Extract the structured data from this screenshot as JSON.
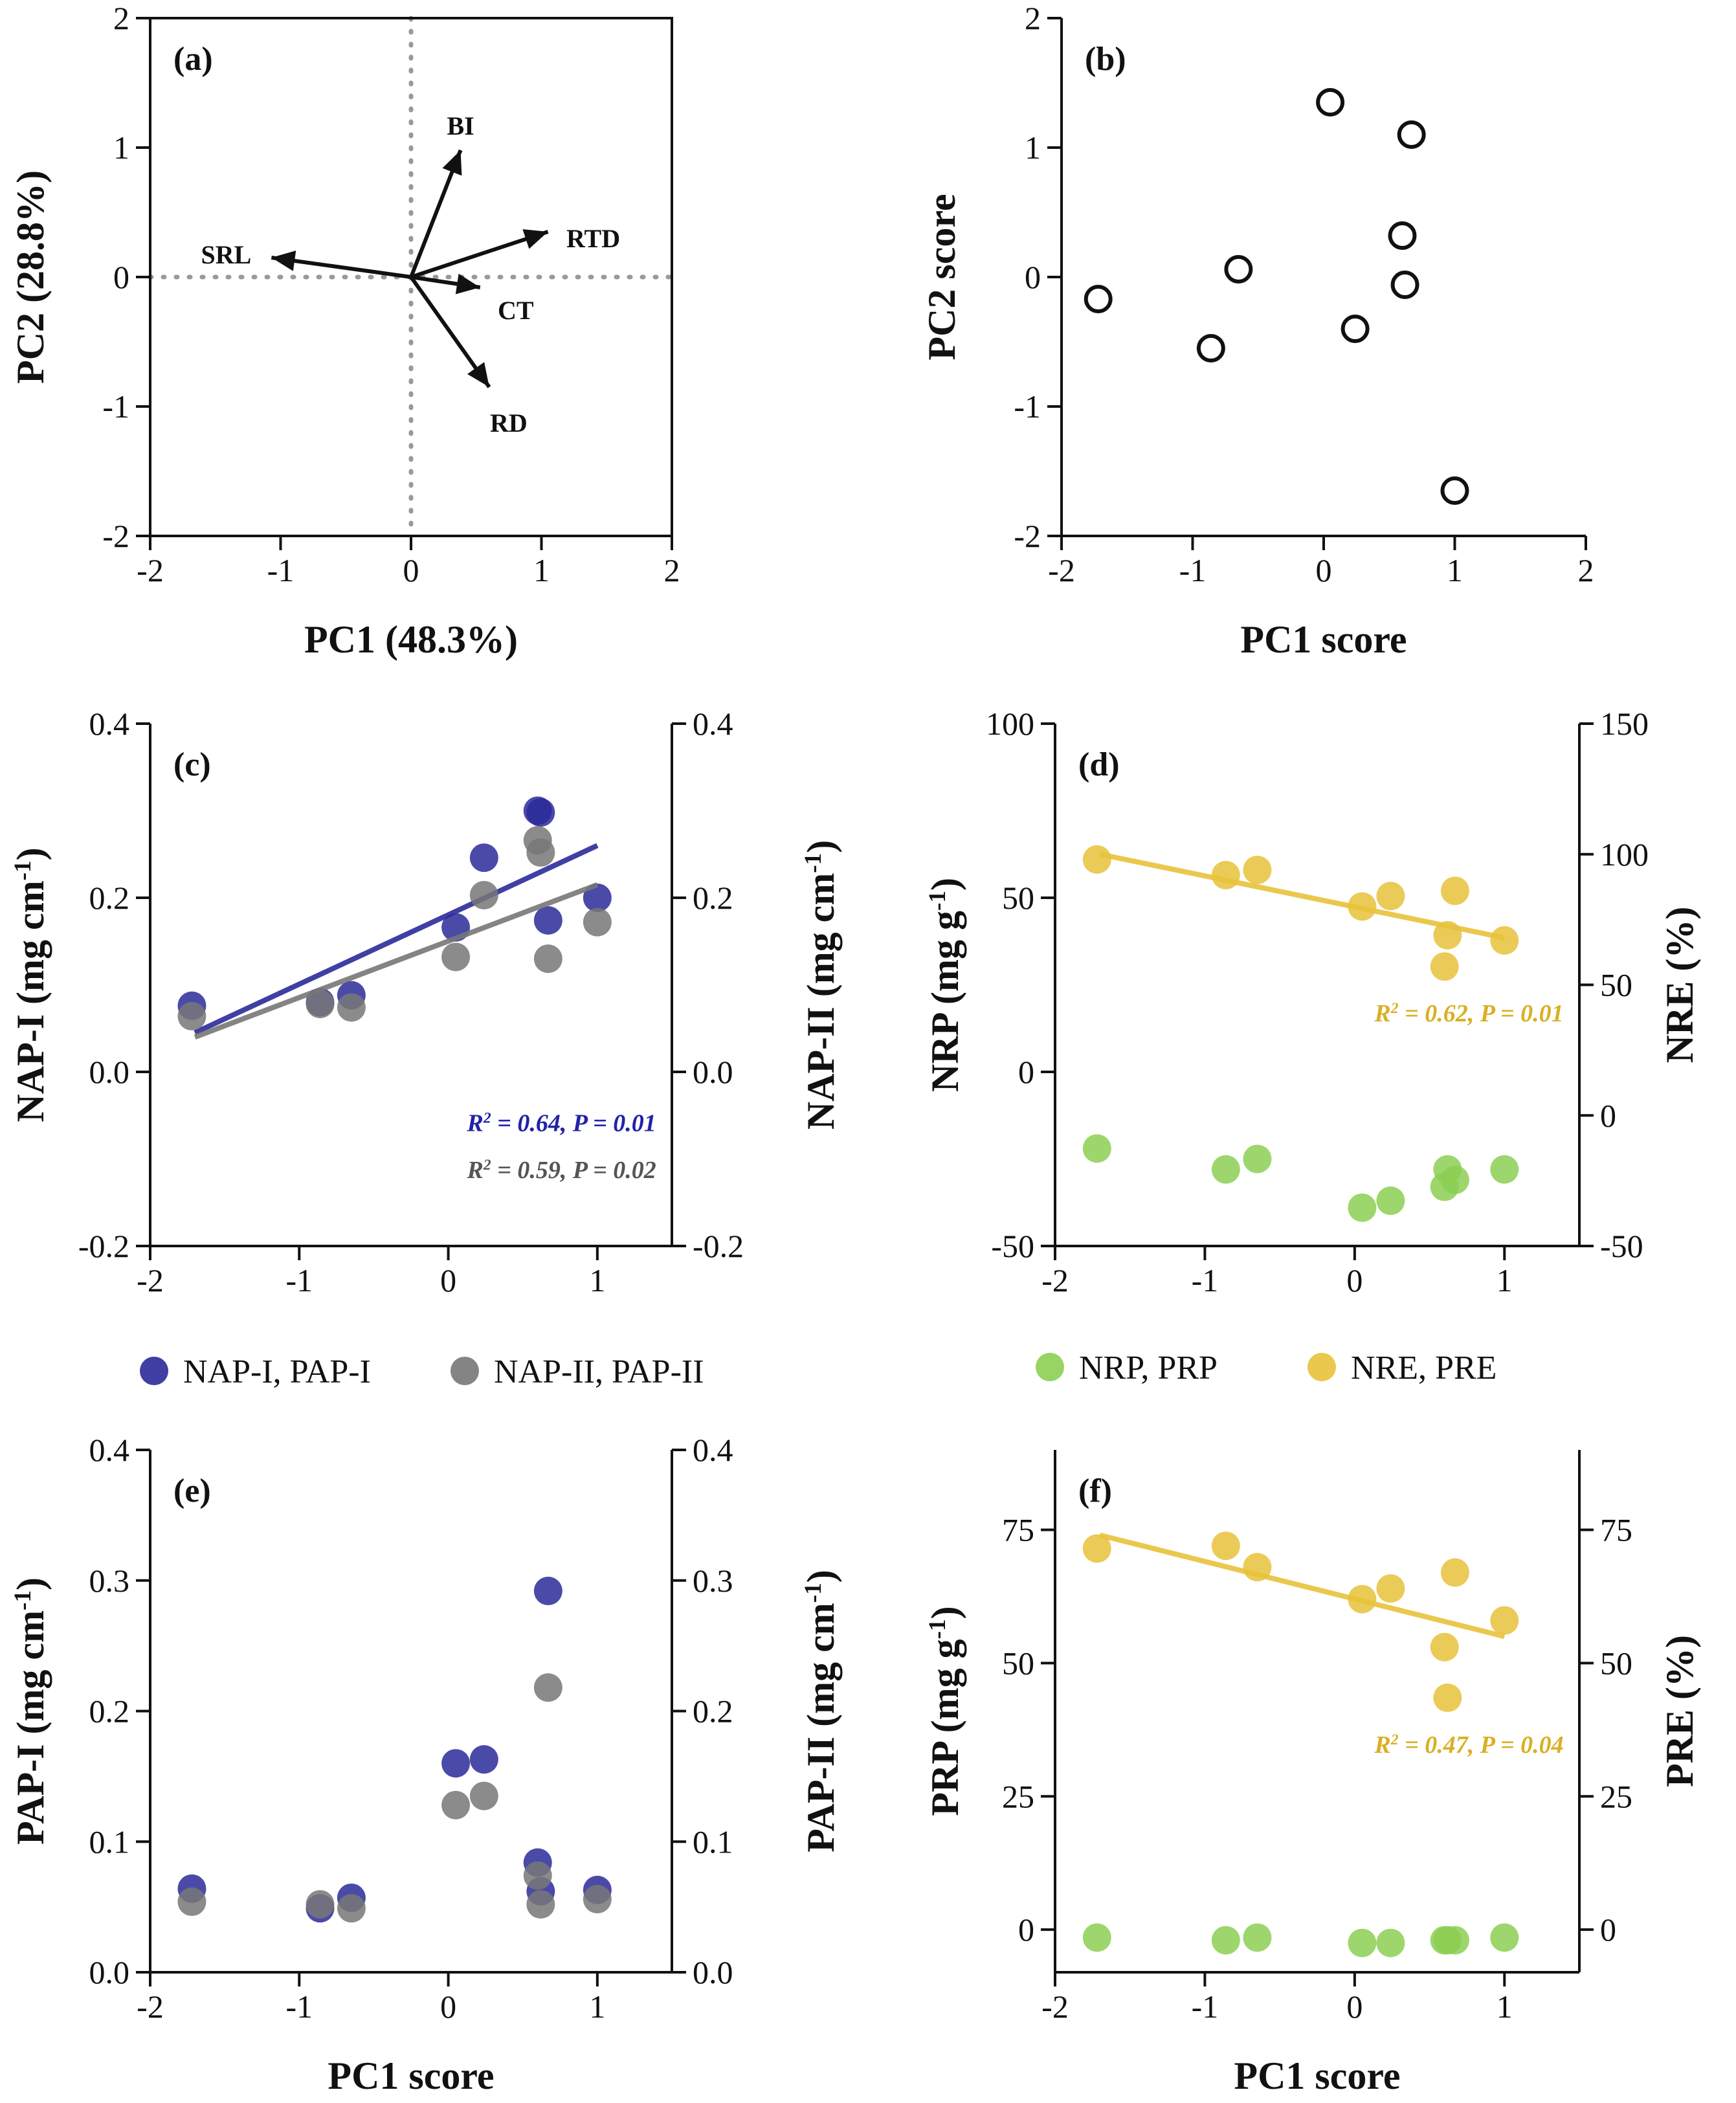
{
  "figure": {
    "legend_cd": [
      {
        "label": "NAP-I, PAP-I",
        "color": "#2a2a9a"
      },
      {
        "label": "NAP-II, PAP-II",
        "color": "#777777"
      }
    ],
    "legend_df": [
      {
        "label": "NRP, PRP",
        "color": "#8ccf52"
      },
      {
        "label": "NRE, PRE",
        "color": "#e8c23a"
      }
    ]
  },
  "chart_data": [
    {
      "panel": "(a)",
      "type": "scatter",
      "subtype": "biplot",
      "xlabel": "PC1 (48.3%)",
      "ylabel": "PC2 (28.8%)",
      "xlim": [
        -2,
        2
      ],
      "ylim": [
        -2,
        2
      ],
      "xticks": [
        "-2",
        "-1",
        "0",
        "1",
        "2"
      ],
      "yticks": [
        "-2",
        "-1",
        "0",
        "1",
        "2"
      ],
      "vectors": [
        {
          "label": "BI",
          "x": 0.38,
          "y": 0.98
        },
        {
          "label": "RTD",
          "x": 1.05,
          "y": 0.35
        },
        {
          "label": "SRL",
          "x": -1.07,
          "y": 0.15
        },
        {
          "label": "CT",
          "x": 0.53,
          "y": -0.08
        },
        {
          "label": "RD",
          "x": 0.6,
          "y": -0.85
        }
      ]
    },
    {
      "panel": "(b)",
      "type": "scatter",
      "xlabel": "PC1 score",
      "ylabel": "PC2 score",
      "xlim": [
        -2,
        2
      ],
      "ylim": [
        -2,
        2
      ],
      "xticks": [
        "-2",
        "-1",
        "0",
        "1",
        "2"
      ],
      "yticks": [
        "-2",
        "-1",
        "0",
        "1",
        "2"
      ],
      "points": [
        [
          -1.72,
          -0.17
        ],
        [
          -0.86,
          -0.55
        ],
        [
          -0.65,
          0.06
        ],
        [
          0.05,
          1.35
        ],
        [
          0.24,
          -0.4
        ],
        [
          0.6,
          0.32
        ],
        [
          0.62,
          -0.06
        ],
        [
          0.67,
          1.1
        ],
        [
          1.0,
          -1.65
        ]
      ]
    },
    {
      "panel": "(c)",
      "type": "scatter",
      "xlabel": "",
      "ylabel": "NAP-I (mg cm-1)",
      "y2label": "NAP-II (mg cm-1)",
      "xlim": [
        -2,
        1.5
      ],
      "ylim": [
        -0.2,
        0.4
      ],
      "y2lim": [
        -0.2,
        0.4
      ],
      "xticks": [
        "-2",
        "-1",
        "0",
        "1"
      ],
      "yticks": [
        "-0.2",
        "0.0",
        "0.2",
        "0.4"
      ],
      "y2ticks": [
        "-0.2",
        "0.0",
        "0.2",
        "0.4"
      ],
      "series": [
        {
          "name": "NAP-I",
          "points": [
            [
              -1.72,
              0.076
            ],
            [
              -0.86,
              0.08
            ],
            [
              -0.65,
              0.088
            ],
            [
              0.05,
              0.166
            ],
            [
              0.24,
              0.246
            ],
            [
              0.6,
              0.3
            ],
            [
              0.62,
              0.298
            ],
            [
              0.67,
              0.174
            ],
            [
              1.0,
              0.2
            ]
          ],
          "fit": [
            [
              -1.7,
              0.045
            ],
            [
              1.0,
              0.26
            ]
          ],
          "stat": "R2 = 0.64, P = 0.01"
        },
        {
          "name": "NAP-II",
          "points": [
            [
              -1.72,
              0.064
            ],
            [
              -0.86,
              0.078
            ],
            [
              -0.65,
              0.074
            ],
            [
              0.05,
              0.132
            ],
            [
              0.24,
              0.203
            ],
            [
              0.6,
              0.266
            ],
            [
              0.62,
              0.252
            ],
            [
              0.67,
              0.13
            ],
            [
              1.0,
              0.172
            ]
          ],
          "fit": [
            [
              -1.7,
              0.04
            ],
            [
              1.0,
              0.215
            ]
          ],
          "stat": "R2 = 0.59, P = 0.02"
        }
      ]
    },
    {
      "panel": "(d)",
      "type": "scatter",
      "xlabel": "",
      "ylabel": "NRP (mg g-1)",
      "y2label": "NRE (%)",
      "xlim": [
        -2,
        1.5
      ],
      "ylim": [
        -50,
        100
      ],
      "y2lim": [
        -50,
        150
      ],
      "xticks": [
        "-2",
        "-1",
        "0",
        "1"
      ],
      "yticks": [
        "-50",
        "0",
        "50",
        "100"
      ],
      "y2ticks": [
        "-50",
        "0",
        "50",
        "100",
        "150"
      ],
      "series": [
        {
          "name": "NRP",
          "points": [
            [
              -1.72,
              -22
            ],
            [
              -0.86,
              -28
            ],
            [
              -0.65,
              -25
            ],
            [
              0.05,
              -39
            ],
            [
              0.24,
              -37
            ],
            [
              0.6,
              -33
            ],
            [
              0.62,
              -28
            ],
            [
              0.67,
              -31
            ],
            [
              1.0,
              -28
            ]
          ]
        },
        {
          "name": "NRE",
          "points": [
            [
              -1.72,
              98
            ],
            [
              -0.86,
              92
            ],
            [
              -0.65,
              94
            ],
            [
              0.05,
              80
            ],
            [
              0.24,
              84
            ],
            [
              0.6,
              57
            ],
            [
              0.62,
              69
            ],
            [
              0.67,
              86
            ],
            [
              1.0,
              67
            ]
          ],
          "fit": [
            [
              -1.7,
              100
            ],
            [
              1.0,
              68
            ]
          ],
          "stat": "R2 = 0.62, P = 0.01"
        }
      ]
    },
    {
      "panel": "(e)",
      "type": "scatter",
      "xlabel": "PC1 score",
      "ylabel": "PAP-I (mg cm-1)",
      "y2label": "PAP-II (mg cm-1)",
      "xlim": [
        -2,
        1.5
      ],
      "ylim": [
        0.0,
        0.4
      ],
      "y2lim": [
        0.0,
        0.4
      ],
      "xticks": [
        "-2",
        "-1",
        "0",
        "1"
      ],
      "yticks": [
        "0.0",
        "0.1",
        "0.2",
        "0.3",
        "0.4"
      ],
      "y2ticks": [
        "0.0",
        "0.1",
        "0.2",
        "0.3",
        "0.4"
      ],
      "series": [
        {
          "name": "PAP-I",
          "points": [
            [
              -1.72,
              0.064
            ],
            [
              -0.86,
              0.049
            ],
            [
              -0.65,
              0.057
            ],
            [
              0.05,
              0.16
            ],
            [
              0.24,
              0.163
            ],
            [
              0.6,
              0.084
            ],
            [
              0.62,
              0.062
            ],
            [
              0.67,
              0.292
            ],
            [
              1.0,
              0.063
            ]
          ]
        },
        {
          "name": "PAP-II",
          "points": [
            [
              -1.72,
              0.054
            ],
            [
              -0.86,
              0.052
            ],
            [
              -0.65,
              0.049
            ],
            [
              0.05,
              0.128
            ],
            [
              0.24,
              0.135
            ],
            [
              0.6,
              0.074
            ],
            [
              0.62,
              0.052
            ],
            [
              0.67,
              0.218
            ],
            [
              1.0,
              0.056
            ]
          ]
        }
      ]
    },
    {
      "panel": "(f)",
      "type": "scatter",
      "xlabel": "PC1 score",
      "ylabel": "PRP (mg g-1)",
      "y2label": "PRE (%)",
      "xlim": [
        -2,
        1.5
      ],
      "ylim": [
        -8,
        90
      ],
      "y2lim": [
        -8,
        90
      ],
      "xticks": [
        "-2",
        "-1",
        "0",
        "1"
      ],
      "yticks": [
        "0",
        "25",
        "50",
        "75"
      ],
      "y2ticks": [
        "0",
        "25",
        "50",
        "75"
      ],
      "series": [
        {
          "name": "PRP",
          "points": [
            [
              -1.72,
              -1.5
            ],
            [
              -0.86,
              -2
            ],
            [
              -0.65,
              -1.5
            ],
            [
              0.05,
              -2.5
            ],
            [
              0.24,
              -2.5
            ],
            [
              0.6,
              -2
            ],
            [
              0.62,
              -2
            ],
            [
              0.67,
              -2
            ],
            [
              1.0,
              -1.5
            ]
          ]
        },
        {
          "name": "PRE",
          "points": [
            [
              -1.72,
              71.5
            ],
            [
              -0.86,
              72
            ],
            [
              -0.65,
              68
            ],
            [
              0.05,
              62
            ],
            [
              0.24,
              64
            ],
            [
              0.6,
              53
            ],
            [
              0.62,
              43.5
            ],
            [
              0.67,
              67
            ],
            [
              1.0,
              58
            ]
          ],
          "fit": [
            [
              -1.7,
              74
            ],
            [
              1.0,
              55
            ]
          ],
          "stat": "R2 = 0.47, P = 0.04"
        }
      ]
    }
  ]
}
